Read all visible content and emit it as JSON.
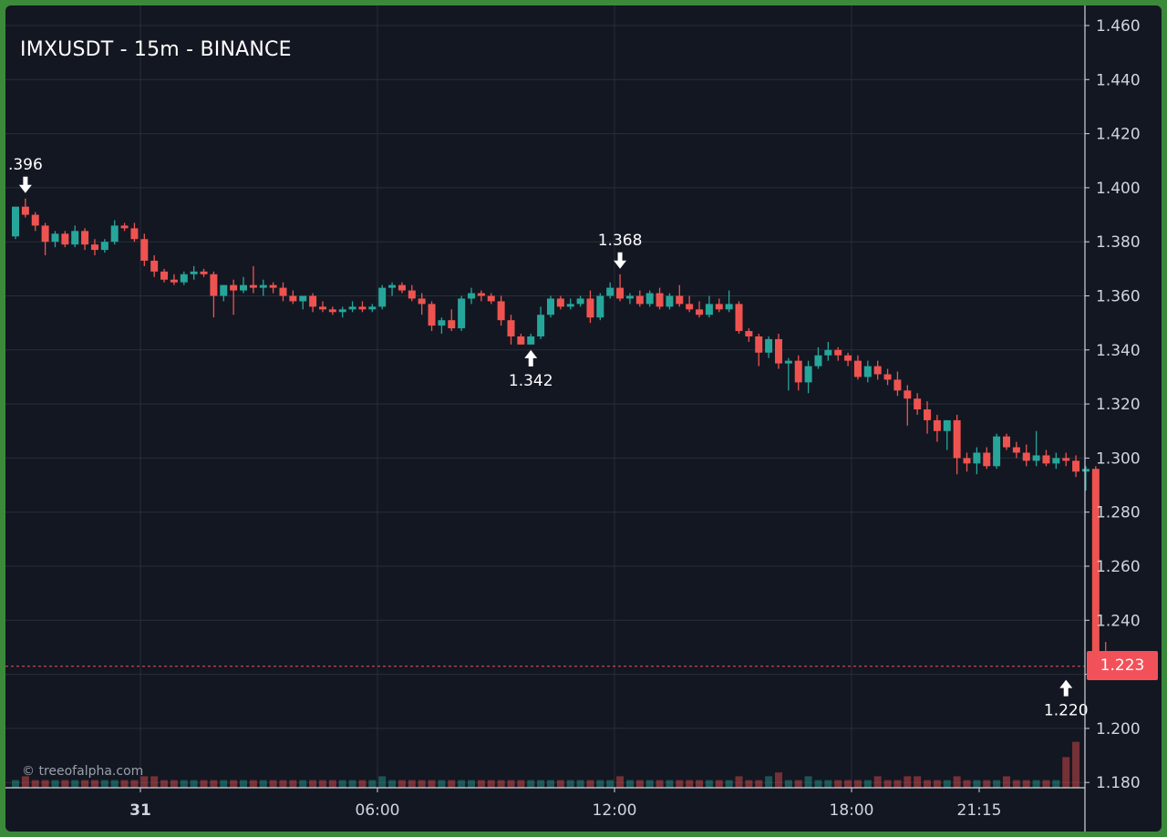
{
  "title": "IMXUSDT - 15m - BINANCE",
  "watermark": "© treeofalpha.com",
  "current_price_label": "1.223",
  "colors": {
    "background": "#131722",
    "up": "#26a69a",
    "down": "#ef5350",
    "grid": "#2a2e39",
    "frame": "#3a8a3a",
    "price_line": "#f2515a"
  },
  "chart_data": {
    "type": "candlestick",
    "symbol": "IMXUSDT",
    "interval": "15m",
    "exchange": "BINANCE",
    "y_ticks": [
      "1.460",
      "1.440",
      "1.420",
      "1.400",
      "1.380",
      "1.360",
      "1.340",
      "1.320",
      "1.300",
      "1.280",
      "1.260",
      "1.240",
      "1.220",
      "1.200",
      "1.180"
    ],
    "ylim": [
      1.18,
      1.46
    ],
    "x_ticks": [
      "31",
      "06:00",
      "12:00",
      "18:00",
      "21:15"
    ],
    "grid": true,
    "current_price": 1.223,
    "annotations": [
      {
        "label": ".396",
        "index": 1,
        "value": 1.396,
        "arrow": "down"
      },
      {
        "label": "1.342",
        "index": 52,
        "value": 1.342,
        "arrow": "up"
      },
      {
        "label": "1.368",
        "index": 61,
        "value": 1.368,
        "arrow": "down"
      },
      {
        "label": "1.220",
        "index": 106,
        "value": 1.22,
        "arrow": "up"
      }
    ],
    "candles": [
      [
        1.382,
        1.393,
        1.381,
        1.393
      ],
      [
        1.393,
        1.396,
        1.389,
        1.39
      ],
      [
        1.39,
        1.391,
        1.384,
        1.386
      ],
      [
        1.386,
        1.387,
        1.375,
        1.38
      ],
      [
        1.38,
        1.384,
        1.378,
        1.383
      ],
      [
        1.383,
        1.384,
        1.378,
        1.379
      ],
      [
        1.379,
        1.386,
        1.378,
        1.384
      ],
      [
        1.384,
        1.385,
        1.377,
        1.379
      ],
      [
        1.379,
        1.381,
        1.375,
        1.377
      ],
      [
        1.377,
        1.381,
        1.376,
        1.38
      ],
      [
        1.38,
        1.388,
        1.379,
        1.386
      ],
      [
        1.386,
        1.387,
        1.384,
        1.385
      ],
      [
        1.385,
        1.387,
        1.38,
        1.381
      ],
      [
        1.381,
        1.383,
        1.371,
        1.373
      ],
      [
        1.373,
        1.375,
        1.367,
        1.369
      ],
      [
        1.369,
        1.37,
        1.365,
        1.366
      ],
      [
        1.366,
        1.368,
        1.364,
        1.365
      ],
      [
        1.365,
        1.369,
        1.364,
        1.368
      ],
      [
        1.368,
        1.371,
        1.366,
        1.369
      ],
      [
        1.369,
        1.37,
        1.367,
        1.368
      ],
      [
        1.368,
        1.369,
        1.352,
        1.36
      ],
      [
        1.36,
        1.364,
        1.358,
        1.364
      ],
      [
        1.364,
        1.366,
        1.353,
        1.362
      ],
      [
        1.362,
        1.367,
        1.361,
        1.364
      ],
      [
        1.364,
        1.371,
        1.361,
        1.363
      ],
      [
        1.363,
        1.366,
        1.36,
        1.364
      ],
      [
        1.364,
        1.365,
        1.361,
        1.363
      ],
      [
        1.363,
        1.365,
        1.358,
        1.36
      ],
      [
        1.36,
        1.362,
        1.357,
        1.358
      ],
      [
        1.358,
        1.36,
        1.355,
        1.36
      ],
      [
        1.36,
        1.361,
        1.354,
        1.356
      ],
      [
        1.356,
        1.358,
        1.354,
        1.355
      ],
      [
        1.355,
        1.356,
        1.353,
        1.354
      ],
      [
        1.354,
        1.356,
        1.352,
        1.355
      ],
      [
        1.355,
        1.358,
        1.354,
        1.356
      ],
      [
        1.356,
        1.358,
        1.354,
        1.355
      ],
      [
        1.355,
        1.357,
        1.354,
        1.356
      ],
      [
        1.356,
        1.364,
        1.355,
        1.363
      ],
      [
        1.363,
        1.365,
        1.36,
        1.364
      ],
      [
        1.364,
        1.365,
        1.361,
        1.362
      ],
      [
        1.362,
        1.364,
        1.358,
        1.359
      ],
      [
        1.359,
        1.361,
        1.353,
        1.357
      ],
      [
        1.357,
        1.358,
        1.347,
        1.349
      ],
      [
        1.349,
        1.352,
        1.346,
        1.351
      ],
      [
        1.351,
        1.355,
        1.347,
        1.348
      ],
      [
        1.348,
        1.36,
        1.347,
        1.359
      ],
      [
        1.359,
        1.363,
        1.357,
        1.361
      ],
      [
        1.361,
        1.362,
        1.358,
        1.36
      ],
      [
        1.36,
        1.361,
        1.357,
        1.358
      ],
      [
        1.358,
        1.36,
        1.349,
        1.351
      ],
      [
        1.351,
        1.353,
        1.342,
        1.345
      ],
      [
        1.345,
        1.346,
        1.342,
        1.342
      ],
      [
        1.342,
        1.346,
        1.342,
        1.345
      ],
      [
        1.345,
        1.356,
        1.344,
        1.353
      ],
      [
        1.353,
        1.36,
        1.352,
        1.359
      ],
      [
        1.359,
        1.36,
        1.355,
        1.356
      ],
      [
        1.356,
        1.359,
        1.355,
        1.357
      ],
      [
        1.357,
        1.36,
        1.356,
        1.359
      ],
      [
        1.359,
        1.362,
        1.35,
        1.352
      ],
      [
        1.352,
        1.361,
        1.351,
        1.36
      ],
      [
        1.36,
        1.365,
        1.359,
        1.363
      ],
      [
        1.363,
        1.368,
        1.358,
        1.359
      ],
      [
        1.359,
        1.361,
        1.357,
        1.36
      ],
      [
        1.36,
        1.362,
        1.356,
        1.357
      ],
      [
        1.357,
        1.362,
        1.356,
        1.361
      ],
      [
        1.361,
        1.363,
        1.355,
        1.356
      ],
      [
        1.356,
        1.361,
        1.355,
        1.36
      ],
      [
        1.36,
        1.364,
        1.356,
        1.357
      ],
      [
        1.357,
        1.36,
        1.354,
        1.355
      ],
      [
        1.355,
        1.358,
        1.352,
        1.353
      ],
      [
        1.353,
        1.36,
        1.352,
        1.357
      ],
      [
        1.357,
        1.359,
        1.354,
        1.355
      ],
      [
        1.355,
        1.362,
        1.354,
        1.357
      ],
      [
        1.357,
        1.358,
        1.346,
        1.347
      ],
      [
        1.347,
        1.348,
        1.343,
        1.345
      ],
      [
        1.345,
        1.346,
        1.334,
        1.339
      ],
      [
        1.339,
        1.345,
        1.337,
        1.344
      ],
      [
        1.344,
        1.346,
        1.333,
        1.335
      ],
      [
        1.335,
        1.337,
        1.325,
        1.336
      ],
      [
        1.336,
        1.338,
        1.325,
        1.328
      ],
      [
        1.328,
        1.336,
        1.324,
        1.334
      ],
      [
        1.334,
        1.341,
        1.333,
        1.338
      ],
      [
        1.338,
        1.343,
        1.336,
        1.34
      ],
      [
        1.34,
        1.341,
        1.336,
        1.338
      ],
      [
        1.338,
        1.339,
        1.334,
        1.336
      ],
      [
        1.336,
        1.338,
        1.329,
        1.33
      ],
      [
        1.33,
        1.336,
        1.328,
        1.334
      ],
      [
        1.334,
        1.336,
        1.329,
        1.331
      ],
      [
        1.331,
        1.333,
        1.327,
        1.329
      ],
      [
        1.329,
        1.332,
        1.323,
        1.325
      ],
      [
        1.325,
        1.327,
        1.312,
        1.322
      ],
      [
        1.322,
        1.324,
        1.316,
        1.318
      ],
      [
        1.318,
        1.321,
        1.309,
        1.314
      ],
      [
        1.314,
        1.316,
        1.306,
        1.31
      ],
      [
        1.31,
        1.314,
        1.303,
        1.314
      ],
      [
        1.314,
        1.316,
        1.294,
        1.3
      ],
      [
        1.3,
        1.302,
        1.295,
        1.298
      ],
      [
        1.298,
        1.304,
        1.294,
        1.302
      ],
      [
        1.302,
        1.304,
        1.296,
        1.297
      ],
      [
        1.297,
        1.309,
        1.296,
        1.308
      ],
      [
        1.308,
        1.309,
        1.303,
        1.304
      ],
      [
        1.304,
        1.306,
        1.3,
        1.302
      ],
      [
        1.302,
        1.305,
        1.297,
        1.299
      ],
      [
        1.299,
        1.31,
        1.297,
        1.301
      ],
      [
        1.301,
        1.303,
        1.297,
        1.298
      ],
      [
        1.298,
        1.302,
        1.296,
        1.3
      ],
      [
        1.3,
        1.302,
        1.297,
        1.299
      ],
      [
        1.299,
        1.301,
        1.293,
        1.295
      ],
      [
        1.295,
        1.297,
        1.288,
        1.296
      ],
      [
        1.296,
        1.297,
        1.228,
        1.228
      ],
      [
        1.228,
        1.232,
        1.22,
        1.223
      ]
    ],
    "volume": [
      2,
      3,
      2,
      2,
      2,
      2,
      2,
      2,
      2,
      2,
      2,
      2,
      2,
      3,
      3,
      2,
      2,
      2,
      2,
      2,
      2,
      2,
      2,
      2,
      2,
      2,
      2,
      2,
      2,
      2,
      2,
      2,
      2,
      2,
      2,
      2,
      2,
      3,
      2,
      2,
      2,
      2,
      2,
      2,
      2,
      2,
      2,
      2,
      2,
      2,
      2,
      2,
      2,
      2,
      2,
      2,
      2,
      2,
      2,
      2,
      2,
      3,
      2,
      2,
      2,
      2,
      2,
      2,
      2,
      2,
      2,
      2,
      2,
      3,
      2,
      2,
      3,
      4,
      2,
      2,
      3,
      2,
      2,
      2,
      2,
      2,
      2,
      3,
      2,
      2,
      3,
      3,
      2,
      2,
      2,
      3,
      2,
      2,
      2,
      2,
      3,
      2,
      2,
      2,
      2,
      2,
      8,
      12
    ]
  }
}
